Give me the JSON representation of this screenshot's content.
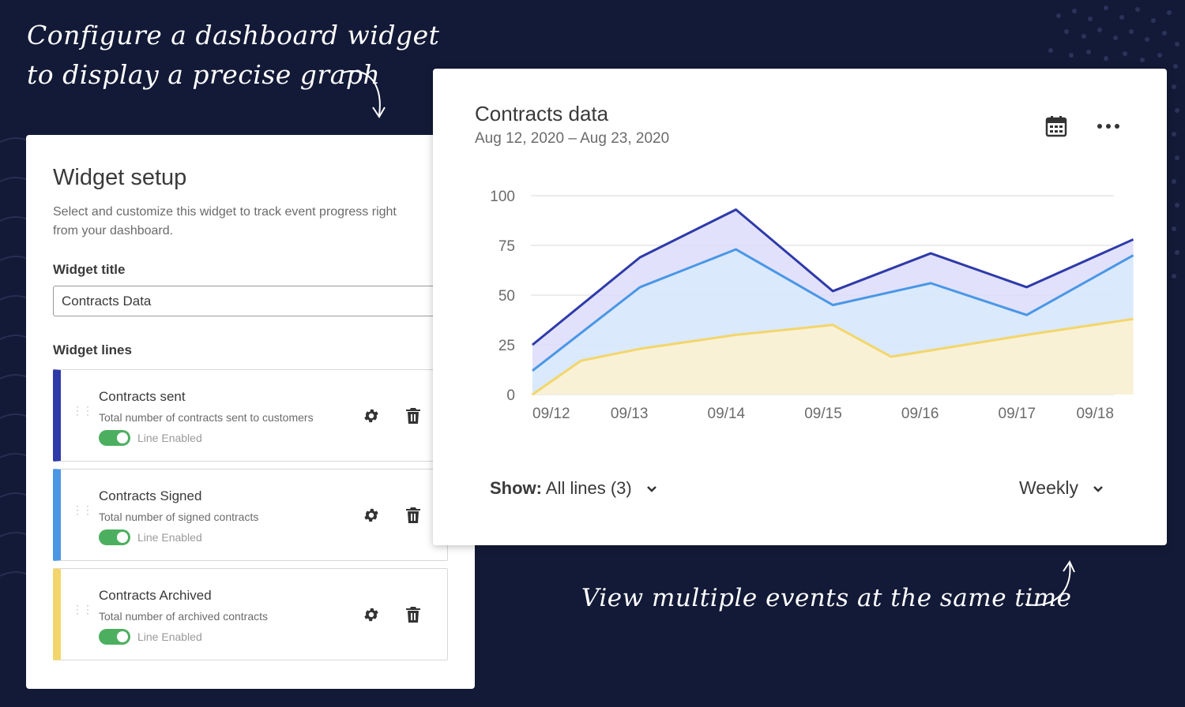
{
  "annotations": {
    "top_line1": "Configure a dashboard widget",
    "top_line2": "to display a precise graph",
    "bottom": "View multiple events at the same time"
  },
  "setup": {
    "title": "Widget setup",
    "description": "Select and customize this widget to track event progress right from your dashboard.",
    "widget_title_label": "Widget title",
    "widget_title_value": "Contracts Data",
    "widget_lines_label": "Widget lines",
    "lines": [
      {
        "name": "Contracts sent",
        "description": "Total number of contracts sent to customers",
        "status": "Line Enabled",
        "color": "#2e3aa8"
      },
      {
        "name": "Contracts Signed",
        "description": "Total number of signed contracts",
        "status": "Line Enabled",
        "color": "#4a97e6"
      },
      {
        "name": "Contracts Archived",
        "description": "Total number of archived contracts",
        "status": "Line Enabled",
        "color": "#f3d66b"
      }
    ]
  },
  "chart_panel": {
    "title": "Contracts data",
    "date_range": "Aug 12, 2020 – Aug 23, 2020",
    "show_label": "Show:",
    "show_value": "All lines (3)",
    "period": "Weekly"
  },
  "chart_data": {
    "type": "area",
    "x": [
      "09/12",
      "09/13",
      "09/14",
      "09/15",
      "09/16",
      "09/17",
      "09/18"
    ],
    "yticks": [
      0,
      25,
      50,
      75,
      100
    ],
    "ylim": [
      0,
      100
    ],
    "grid": true,
    "series": [
      {
        "name": "Contracts sent",
        "color": "#2e3aa8",
        "fill": "#dcdcfa",
        "points": [
          [
            0,
            25
          ],
          [
            1.11,
            69
          ],
          [
            2.1,
            93
          ],
          [
            3.1,
            52
          ],
          [
            4.11,
            71
          ],
          [
            5.1,
            54
          ],
          [
            6.2,
            78
          ]
        ]
      },
      {
        "name": "Contracts Signed",
        "color": "#4a97e6",
        "fill": "#d8eafc",
        "points": [
          [
            0,
            12
          ],
          [
            1.11,
            54
          ],
          [
            2.1,
            73
          ],
          [
            3.1,
            45
          ],
          [
            4.11,
            56
          ],
          [
            5.1,
            40
          ],
          [
            6.2,
            70
          ]
        ]
      },
      {
        "name": "Contracts Archived",
        "color": "#f3d66b",
        "fill": "#fdf2cf",
        "points": [
          [
            0,
            0
          ],
          [
            0.5,
            17
          ],
          [
            1.11,
            23
          ],
          [
            2.1,
            30
          ],
          [
            3.1,
            35
          ],
          [
            3.7,
            19
          ],
          [
            5.1,
            30
          ],
          [
            6.2,
            38
          ]
        ]
      }
    ]
  }
}
